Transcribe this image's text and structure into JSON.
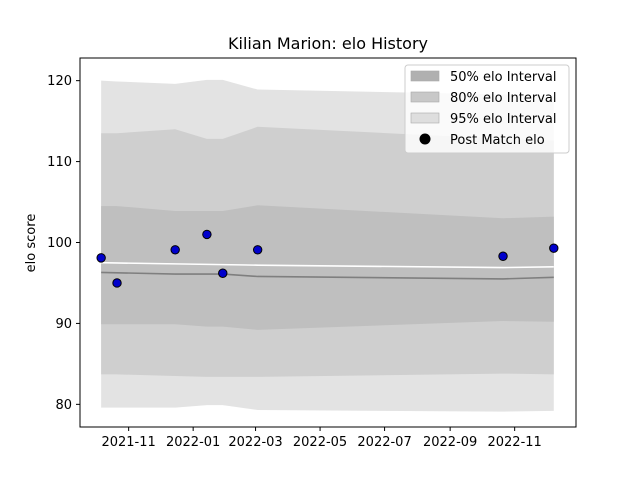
{
  "chart_data": {
    "type": "line",
    "title": "Kilian Marion: elo History",
    "xlabel": "",
    "ylabel": "elo score",
    "xlim": [
      "2021-09-16",
      "2022-12-29"
    ],
    "ylim": [
      77.2,
      122.8
    ],
    "x_ticks": [
      "2021-11",
      "2022-01",
      "2022-03",
      "2022-05",
      "2022-07",
      "2022-09",
      "2022-11"
    ],
    "y_ticks": [
      80,
      90,
      100,
      110,
      120
    ],
    "grid": false,
    "legend_position": "top-right",
    "legend": [
      {
        "label": "50% elo Interval",
        "kind": "patch",
        "color": "#b0b0b0"
      },
      {
        "label": "80% elo Interval",
        "kind": "patch",
        "color": "#c8c8c8"
      },
      {
        "label": "95% elo Interval",
        "kind": "patch",
        "color": "#dedede"
      },
      {
        "label": "Post Match elo",
        "kind": "marker",
        "color": "#000000"
      }
    ],
    "bands": [
      {
        "name": "95% elo Interval",
        "color": "#e3e3e3",
        "x": [
          "2021-10-06",
          "2021-10-21",
          "2021-12-15",
          "2022-01-14",
          "2022-01-29",
          "2022-03-03",
          "2022-10-21",
          "2022-12-08"
        ],
        "upper": [
          120.0,
          119.9,
          119.6,
          120.1,
          120.1,
          118.9,
          118.3,
          118.0
        ],
        "lower": [
          79.6,
          79.6,
          79.6,
          79.9,
          79.9,
          79.3,
          79.1,
          79.2
        ]
      },
      {
        "name": "80% elo Interval",
        "color": "#cfcfcf",
        "x": [
          "2021-10-06",
          "2021-10-21",
          "2021-12-15",
          "2022-01-14",
          "2022-01-29",
          "2022-03-03",
          "2022-10-21",
          "2022-12-08"
        ],
        "upper": [
          113.5,
          113.5,
          114.0,
          112.8,
          112.8,
          114.3,
          112.8,
          112.6
        ],
        "lower": [
          83.7,
          83.7,
          83.5,
          83.4,
          83.4,
          83.4,
          83.8,
          83.7
        ]
      },
      {
        "name": "50% elo Interval",
        "color": "#bfbfbf",
        "x": [
          "2021-10-06",
          "2021-10-21",
          "2021-12-15",
          "2022-01-14",
          "2022-01-29",
          "2022-03-03",
          "2022-10-21",
          "2022-12-08"
        ],
        "upper": [
          104.5,
          104.5,
          103.9,
          103.9,
          103.9,
          104.6,
          103.0,
          103.2
        ],
        "lower": [
          89.9,
          89.9,
          89.9,
          89.6,
          89.6,
          89.2,
          90.3,
          90.2
        ]
      }
    ],
    "series": [
      {
        "color": "#ffffff",
        "x": [
          "2021-10-06",
          "2022-03-03",
          "2022-10-21",
          "2022-12-08"
        ],
        "values": [
          97.5,
          97.2,
          96.9,
          97.0
        ]
      },
      {
        "color": "#7f7f7f",
        "x": [
          "2021-10-06",
          "2021-12-15",
          "2022-01-29",
          "2022-03-03",
          "2022-10-21",
          "2022-12-08"
        ],
        "values": [
          96.3,
          96.1,
          96.1,
          95.8,
          95.5,
          95.7
        ]
      }
    ],
    "points": {
      "name": "Post Match elo",
      "color": "#0000cc",
      "x": [
        "2021-10-06",
        "2021-10-21",
        "2021-12-15",
        "2022-01-14",
        "2022-01-29",
        "2022-03-03",
        "2022-10-21",
        "2022-12-08"
      ],
      "values": [
        98.1,
        95.0,
        99.1,
        101.0,
        96.2,
        99.1,
        98.3,
        99.3
      ]
    }
  }
}
